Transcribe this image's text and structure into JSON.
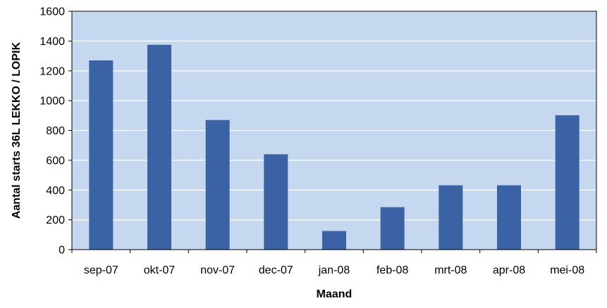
{
  "chart_data": {
    "type": "bar",
    "title": "",
    "xlabel": "Maand",
    "ylabel": "Aantal starts 36L LEKKO / LOPIK",
    "categories": [
      "sep-07",
      "okt-07",
      "nov-07",
      "dec-07",
      "jan-08",
      "feb-08",
      "mrt-08",
      "apr-08",
      "mei-08"
    ],
    "values": [
      1270,
      1375,
      870,
      640,
      125,
      285,
      432,
      432,
      902
    ],
    "ylim": [
      0,
      1600
    ],
    "yticks": [
      0,
      200,
      400,
      600,
      800,
      1000,
      1200,
      1400,
      1600
    ],
    "grid": true,
    "legend": "none",
    "colors": {
      "plot_background": "#c5d8f0",
      "bar": "#3a62a4",
      "gridline": "#ffffff",
      "axis": "#000000"
    }
  }
}
